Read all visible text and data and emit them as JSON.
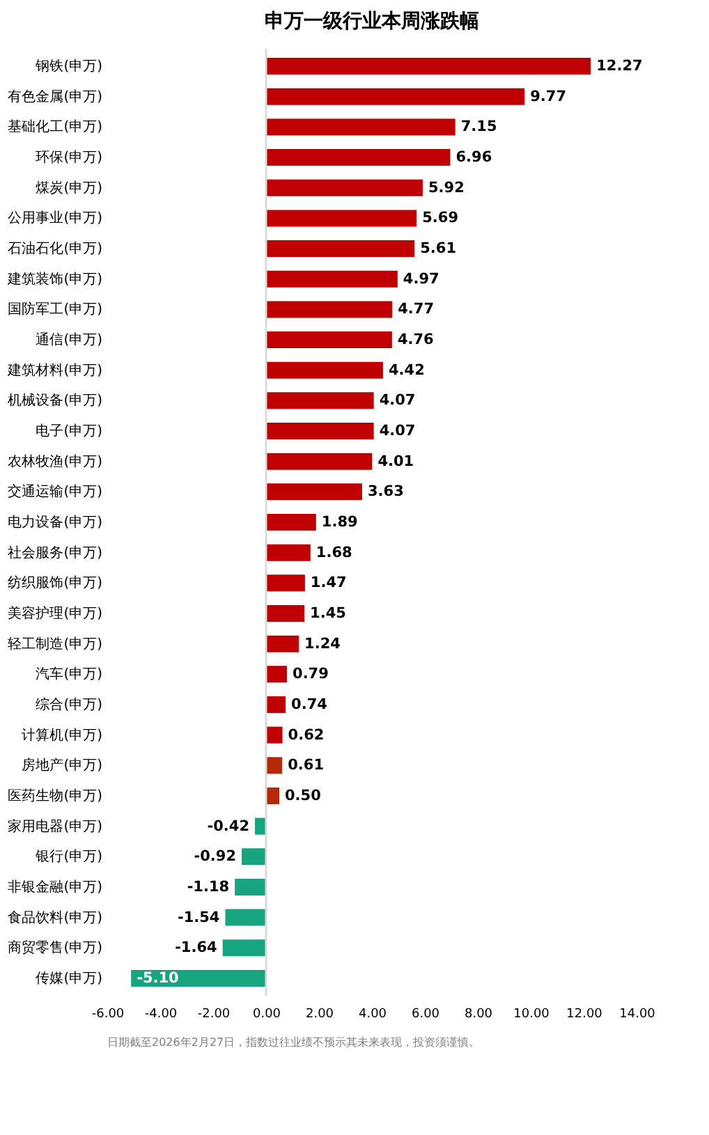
{
  "chart_data": {
    "type": "bar",
    "orientation": "horizontal",
    "title": "申万一级行业本周涨跌幅",
    "categories": [
      "钢铁(申万)",
      "有色金属(申万)",
      "基础化工(申万)",
      "环保(申万)",
      "煤炭(申万)",
      "公用事业(申万)",
      "石油石化(申万)",
      "建筑装饰(申万)",
      "国防军工(申万)",
      "通信(申万)",
      "建筑材料(申万)",
      "机械设备(申万)",
      "电子(申万)",
      "农林牧渔(申万)",
      "交通运输(申万)",
      "电力设备(申万)",
      "社会服务(申万)",
      "纺织服饰(申万)",
      "美容护理(申万)",
      "轻工制造(申万)",
      "汽车(申万)",
      "综合(申万)",
      "计算机(申万)",
      "房地产(申万)",
      "医药生物(申万)",
      "家用电器(申万)",
      "银行(申万)",
      "非银金融(申万)",
      "食品饮料(申万)",
      "商贸零售(申万)",
      "传媒(申万)"
    ],
    "values": [
      12.27,
      9.77,
      7.15,
      6.96,
      5.92,
      5.69,
      5.61,
      4.97,
      4.77,
      4.76,
      4.42,
      4.07,
      4.07,
      4.01,
      3.63,
      1.89,
      1.68,
      1.47,
      1.45,
      1.24,
      0.79,
      0.74,
      0.62,
      0.61,
      0.5,
      -0.42,
      -0.92,
      -1.18,
      -1.54,
      -1.64,
      -5.1
    ],
    "colors": [
      "#c00000",
      "#c00000",
      "#c00000",
      "#c00000",
      "#c00000",
      "#c00000",
      "#c00000",
      "#c00000",
      "#c00000",
      "#c00000",
      "#c00000",
      "#c00000",
      "#c00000",
      "#c00000",
      "#c00000",
      "#c00000",
      "#c00000",
      "#c00000",
      "#c00000",
      "#c00000",
      "#c00000",
      "#c00000",
      "#c00000",
      "#b5290a",
      "#b5290a",
      "#17a57f",
      "#17a57f",
      "#17a57f",
      "#17a57f",
      "#17a57f",
      "#17a57f"
    ],
    "value_labels": [
      "12.27",
      "9.77",
      "7.15",
      "6.96",
      "5.92",
      "5.69",
      "5.61",
      "4.97",
      "4.77",
      "4.76",
      "4.42",
      "4.07",
      "4.07",
      "4.01",
      "3.63",
      "1.89",
      "1.68",
      "1.47",
      "1.45",
      "1.24",
      "0.79",
      "0.74",
      "0.62",
      "0.61",
      "0.50",
      "-0.42",
      "-0.92",
      "-1.18",
      "-1.54",
      "-1.64",
      "-5.10"
    ],
    "xlim": [
      -6,
      14
    ],
    "xticks": [
      {
        "value": -6,
        "label": "-6.00"
      },
      {
        "value": -4,
        "label": "-4.00"
      },
      {
        "value": -2,
        "label": "-2.00"
      },
      {
        "value": 0,
        "label": "0.00"
      },
      {
        "value": 2,
        "label": "2.00"
      },
      {
        "value": 4,
        "label": "4.00"
      },
      {
        "value": 6,
        "label": "6.00"
      },
      {
        "value": 8,
        "label": "8.00"
      },
      {
        "value": 10,
        "label": "10.00"
      },
      {
        "value": 12,
        "label": "12.00"
      },
      {
        "value": 14,
        "label": "14.00"
      }
    ],
    "ref_lines": [
      {
        "axis": "x",
        "value": 0,
        "color": "#d9d9d9"
      }
    ],
    "grid": false,
    "annotations": [
      "日期截至2026年2月27日，指数过往业绩不预示其未来表现，投资须谨慎。"
    ]
  }
}
